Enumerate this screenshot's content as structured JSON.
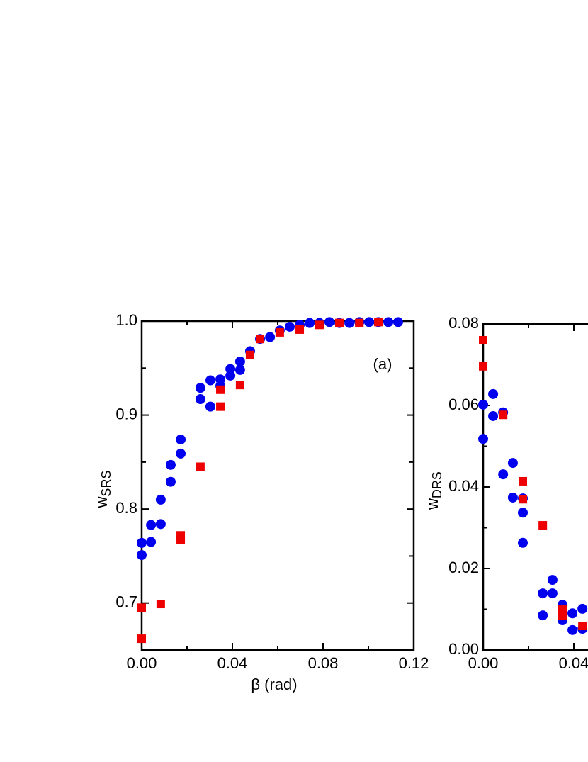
{
  "chart_data": [
    {
      "type": "scatter",
      "annotation": "(a)",
      "x_label": "β (rad)",
      "y_label": "w",
      "y_label_sub": "SRS",
      "xlim": [
        0,
        0.12
      ],
      "ylim": [
        0.65,
        1.0
      ],
      "xticks": [
        {
          "value": 0,
          "label": "0.00"
        },
        0.04,
        0.08,
        0.12
      ],
      "yticks": [
        0.7,
        0.8,
        0.9,
        {
          "value": 1,
          "label": "1.0"
        }
      ],
      "series": [
        {
          "marker": "circle",
          "color": "#0000ee",
          "x": [
            0,
            0,
            0.0041,
            0.0041,
            0.0084,
            0.0084,
            0.0128,
            0.0128,
            0.0172,
            0.0172,
            0.0259,
            0.0259,
            0.0303,
            0.0303,
            0.0347,
            0.0347,
            0.0391,
            0.0391,
            0.0434,
            0.0434,
            0.0478,
            0.0522,
            0.0566,
            0.0609,
            0.0653,
            0.0697,
            0.0741,
            0.0784,
            0.0828,
            0.0872,
            0.0916,
            0.096,
            0.1003,
            0.1044,
            0.1088,
            0.1131
          ],
          "values": [
            0.764,
            0.751,
            0.765,
            0.783,
            0.784,
            0.81,
            0.829,
            0.847,
            0.859,
            0.874,
            0.917,
            0.929,
            0.937,
            0.909,
            0.938,
            0.931,
            0.942,
            0.949,
            0.948,
            0.957,
            0.968,
            0.981,
            0.983,
            0.99,
            0.994,
            0.996,
            0.998,
            0.998,
            0.999,
            0.998,
            0.998,
            0.999,
            0.999,
            0.999,
            0.999,
            0.999
          ]
        },
        {
          "marker": "square",
          "color": "#ee0000",
          "x": [
            0,
            0,
            0.0084,
            0.0172,
            0.0172,
            0.0259,
            0.0347,
            0.0347,
            0.0434,
            0.0478,
            0.0522,
            0.0609,
            0.0697,
            0.0784,
            0.0872,
            0.096,
            0.1044
          ],
          "values": [
            0.695,
            0.662,
            0.699,
            0.772,
            0.767,
            0.845,
            0.927,
            0.909,
            0.932,
            0.964,
            0.981,
            0.988,
            0.991,
            0.996,
            0.998,
            0.998,
            0.999
          ]
        }
      ]
    },
    {
      "type": "scatter",
      "y_label": "w",
      "y_label_sub": "DRS",
      "xlim": [
        0,
        0.12
      ],
      "ylim": [
        0,
        0.08
      ],
      "xticks": [
        {
          "value": 0,
          "label": "0.00"
        },
        0.04
      ],
      "yticks": [
        {
          "value": 0,
          "label": "0.00"
        },
        0.02,
        0.04,
        0.06,
        0.08
      ],
      "series": [
        {
          "marker": "circle",
          "color": "#0000ee",
          "x": [
            0,
            0,
            0.0044,
            0.0044,
            0.0088,
            0.0088,
            0.0131,
            0.0131,
            0.0175,
            0.0175,
            0.0175,
            0.0263,
            0.0263,
            0.0306,
            0.0306,
            0.035,
            0.035,
            0.0394,
            0.0394,
            0.0438,
            0.0438
          ],
          "values": [
            0.0602,
            0.0518,
            0.0628,
            0.0574,
            0.0583,
            0.0431,
            0.0459,
            0.0374,
            0.0372,
            0.0337,
            0.0263,
            0.0139,
            0.0085,
            0.0172,
            0.0139,
            0.0111,
            0.0073,
            0.009,
            0.0049,
            0.0101,
            0.0052
          ]
        },
        {
          "marker": "square",
          "color": "#ee0000",
          "x": [
            0,
            0,
            0.0088,
            0.0175,
            0.0175,
            0.0263,
            0.035,
            0.035,
            0.0438
          ],
          "values": [
            0.076,
            0.0696,
            0.0577,
            0.0414,
            0.037,
            0.0306,
            0.0099,
            0.0085,
            0.0059
          ]
        }
      ]
    }
  ]
}
